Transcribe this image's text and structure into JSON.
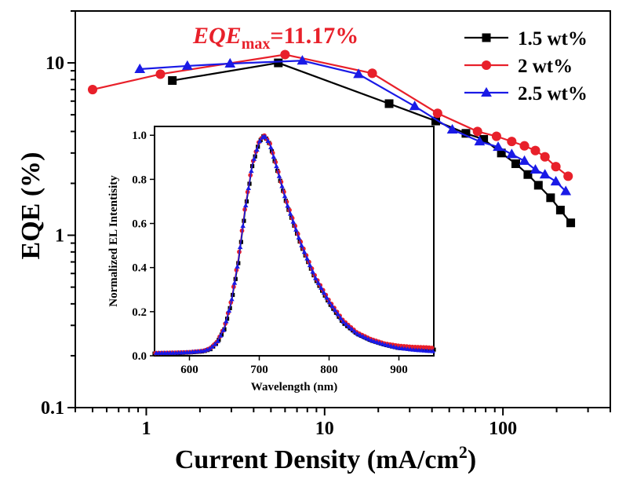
{
  "chart_data": [
    {
      "type": "line",
      "xscale": "log",
      "yscale": "log",
      "xlabel": "Current Density (mA/cm",
      "xlabel_sup": "2",
      "xlabel_end": ")",
      "ylabel": "EQE (%)",
      "xlim": [
        0.4,
        400
      ],
      "ylim": [
        0.1,
        20
      ],
      "xticks": [
        {
          "v": 1,
          "label": "1"
        },
        {
          "v": 10,
          "label": "10"
        },
        {
          "v": 100,
          "label": "100"
        }
      ],
      "yticks": [
        {
          "v": 0.1,
          "label": "0.1"
        },
        {
          "v": 1,
          "label": "1"
        },
        {
          "v": 10,
          "label": "10"
        }
      ],
      "annotation": {
        "text": "EQE",
        "sub": "max",
        "value": "=11.17%",
        "color": "#e8202a"
      },
      "legend_position": "top-right",
      "series": [
        {
          "name": "1.5 wt%",
          "color": "#000000",
          "marker": "square",
          "x": [
            1.4,
            5.5,
            23,
            42,
            62,
            78,
            98,
            118,
            138,
            158,
            185,
            210,
            240
          ],
          "y": [
            7.9,
            10.0,
            5.8,
            4.6,
            3.9,
            3.6,
            3.0,
            2.6,
            2.25,
            1.95,
            1.65,
            1.4,
            1.18
          ]
        },
        {
          "name": "2 wt%",
          "color": "#e8202a",
          "marker": "circle",
          "x": [
            0.5,
            1.2,
            6.0,
            18.5,
            43,
            72,
            92,
            112,
            132,
            152,
            172,
            198,
            232
          ],
          "y": [
            7.0,
            8.6,
            11.17,
            8.7,
            5.1,
            4.0,
            3.75,
            3.5,
            3.3,
            3.1,
            2.85,
            2.5,
            2.2
          ]
        },
        {
          "name": "2.5 wt%",
          "color": "#1a1ae6",
          "marker": "triangle",
          "x": [
            0.92,
            1.7,
            2.95,
            7.5,
            15.5,
            32,
            52,
            74,
            94,
            112,
            132,
            152,
            172,
            198,
            225
          ],
          "y": [
            9.2,
            9.6,
            9.9,
            10.3,
            8.6,
            5.6,
            4.1,
            3.5,
            3.25,
            2.95,
            2.7,
            2.4,
            2.25,
            2.05,
            1.8
          ]
        }
      ]
    },
    {
      "type": "line",
      "role": "inset",
      "xlabel": "Wavelength (nm)",
      "ylabel": "Normalized EL Intentisity",
      "xlim": [
        550,
        950
      ],
      "ylim": [
        0,
        1.04
      ],
      "xticks": [
        600,
        700,
        800,
        900
      ],
      "yticks": [
        0.0,
        0.2,
        0.4,
        0.6,
        0.8,
        1.0
      ],
      "peak_nm": 707,
      "series": [
        {
          "name": "1.5 wt%",
          "color": "#000000",
          "marker": "square",
          "x": [
            550,
            580,
            600,
            620,
            630,
            640,
            650,
            660,
            670,
            680,
            690,
            700,
            707,
            715,
            725,
            740,
            760,
            780,
            800,
            820,
            840,
            860,
            880,
            900,
            920,
            940,
            950
          ],
          "y": [
            0.01,
            0.012,
            0.015,
            0.02,
            0.03,
            0.06,
            0.12,
            0.24,
            0.42,
            0.66,
            0.86,
            0.97,
            1.0,
            0.96,
            0.85,
            0.68,
            0.5,
            0.35,
            0.24,
            0.15,
            0.1,
            0.07,
            0.05,
            0.035,
            0.03,
            0.028,
            0.028
          ]
        },
        {
          "name": "2 wt%",
          "color": "#e8202a",
          "marker": "circle",
          "x": [
            550,
            580,
            600,
            620,
            630,
            640,
            650,
            660,
            670,
            680,
            690,
            700,
            707,
            715,
            725,
            740,
            760,
            780,
            800,
            820,
            840,
            860,
            880,
            900,
            920,
            940,
            950
          ],
          "y": [
            0.012,
            0.014,
            0.016,
            0.022,
            0.034,
            0.065,
            0.13,
            0.25,
            0.44,
            0.68,
            0.87,
            0.975,
            1.0,
            0.965,
            0.86,
            0.69,
            0.51,
            0.36,
            0.25,
            0.16,
            0.105,
            0.075,
            0.055,
            0.045,
            0.04,
            0.038,
            0.035
          ]
        },
        {
          "name": "2.5 wt%",
          "color": "#1a1ae6",
          "marker": "triangle",
          "x": [
            550,
            580,
            600,
            620,
            630,
            640,
            650,
            660,
            670,
            680,
            690,
            700,
            707,
            715,
            725,
            740,
            760,
            780,
            800,
            820,
            840,
            860,
            880,
            900,
            920,
            940,
            950
          ],
          "y": [
            0.012,
            0.013,
            0.016,
            0.022,
            0.033,
            0.062,
            0.125,
            0.245,
            0.43,
            0.67,
            0.865,
            0.97,
            1.0,
            0.962,
            0.855,
            0.685,
            0.505,
            0.355,
            0.245,
            0.155,
            0.1,
            0.07,
            0.05,
            0.035,
            0.027,
            0.022,
            0.02
          ]
        }
      ]
    }
  ]
}
